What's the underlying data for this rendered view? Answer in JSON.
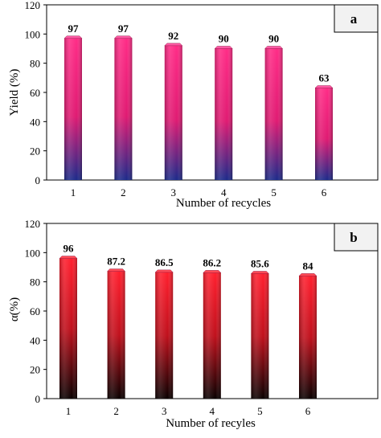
{
  "chart_data": [
    {
      "type": "bar",
      "panel_label": "a",
      "categories": [
        "1",
        "2",
        "3",
        "4",
        "5",
        "6"
      ],
      "values": [
        97,
        97,
        92,
        90,
        90,
        63
      ],
      "data_labels": [
        "97",
        "97",
        "92",
        "90",
        "90",
        "63"
      ],
      "xlabel": "Number of recycles",
      "ylabel": "Yield (%)",
      "ylim": [
        0,
        120
      ],
      "yticks": [
        "0",
        "20",
        "40",
        "60",
        "80",
        "100",
        "120"
      ],
      "grid": false,
      "colors": {
        "bar_top": "#ff2b86",
        "bar_bottom": "#1c2a8a",
        "cap": "#ff5aa5"
      }
    },
    {
      "type": "bar",
      "panel_label": "b",
      "categories": [
        "1",
        "2",
        "3",
        "4",
        "5",
        "6"
      ],
      "values": [
        96,
        87.2,
        86.5,
        86.2,
        85.6,
        84
      ],
      "data_labels": [
        "96",
        "87.2",
        "86.5",
        "86.2",
        "85.6",
        "84"
      ],
      "xlabel": "Number of recyles",
      "ylabel": "α(%)",
      "ylim": [
        0,
        120
      ],
      "yticks": [
        "0",
        "20",
        "40",
        "60",
        "80",
        "100",
        "120"
      ],
      "grid": false,
      "colors": {
        "bar_top": "#ff1f2e",
        "bar_bottom": "#0a0000",
        "cap": "#ff4a55"
      }
    }
  ]
}
